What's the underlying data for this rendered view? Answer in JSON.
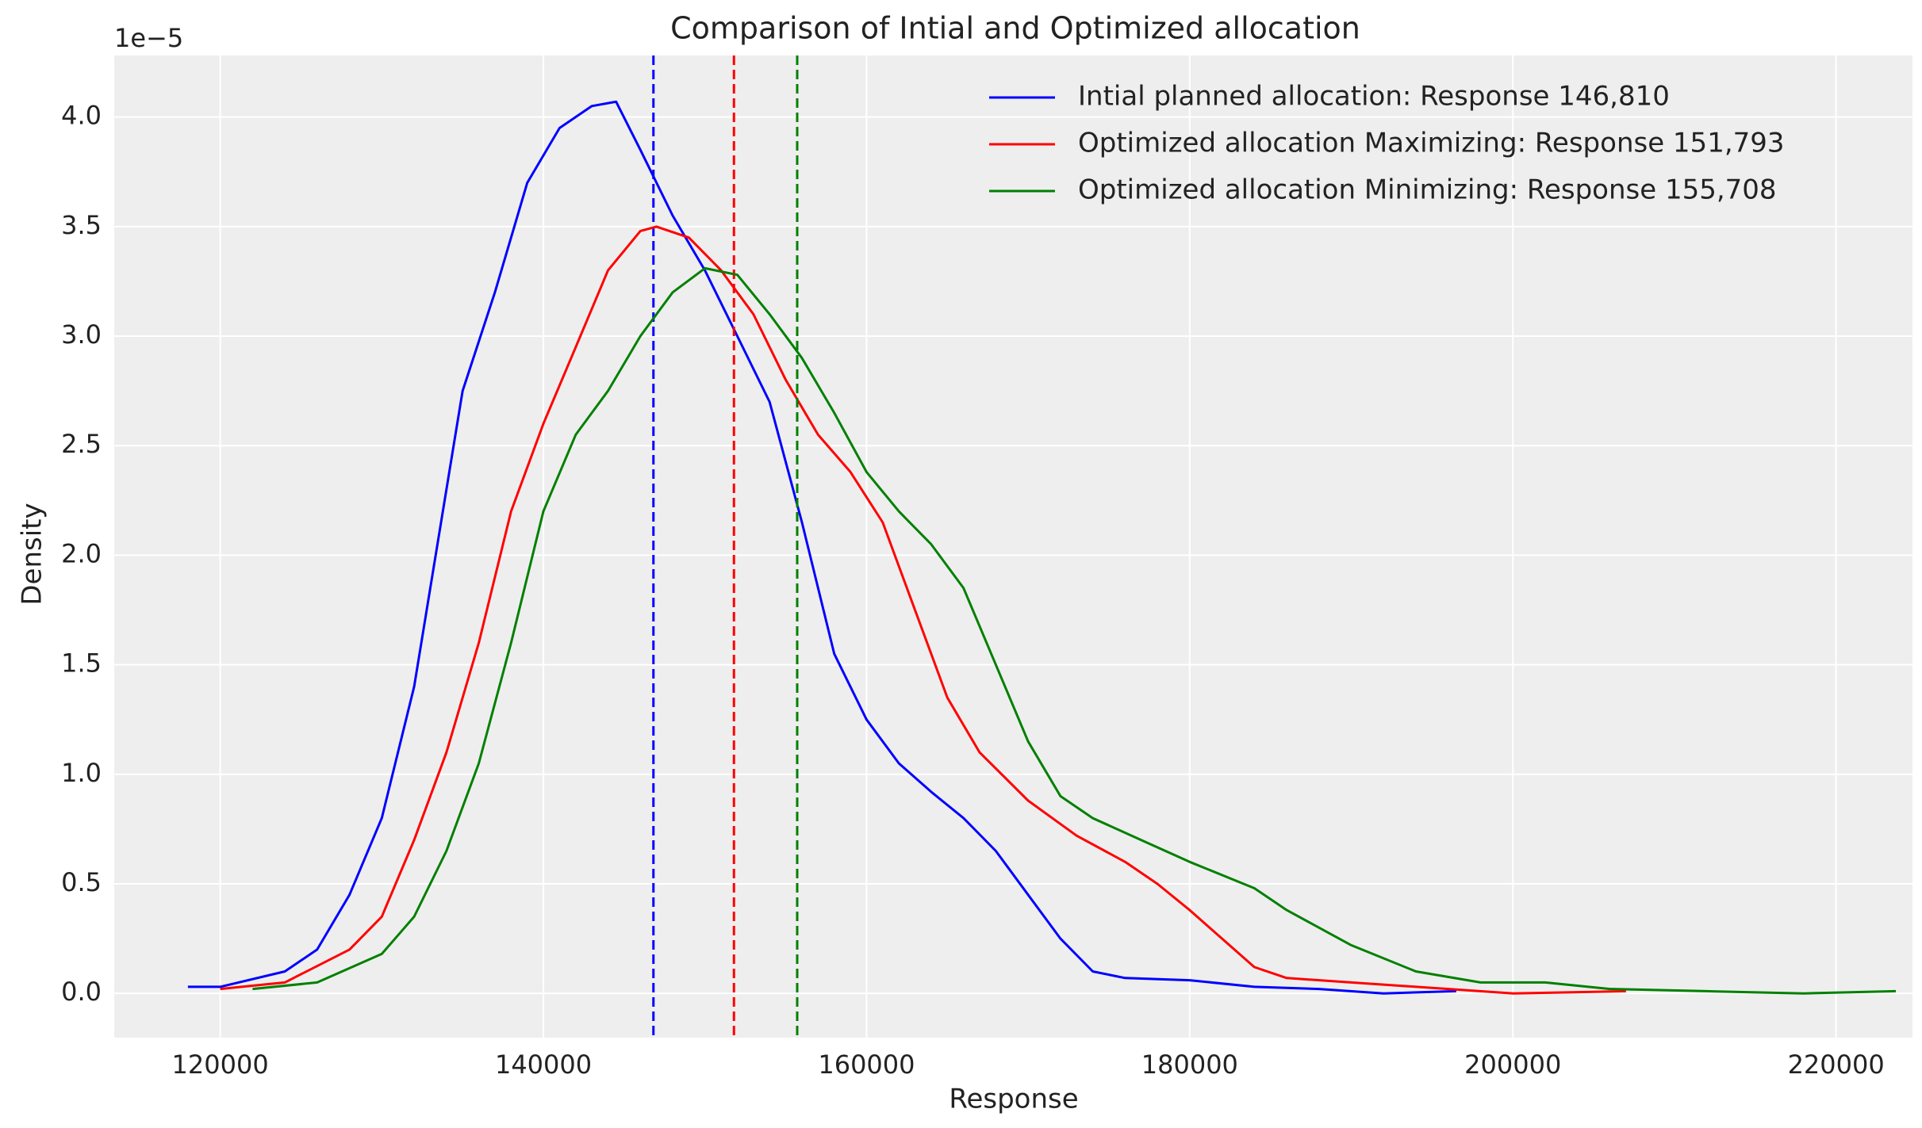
{
  "chart_data": {
    "type": "line",
    "title": "Comparison of Intial and Optimized allocation",
    "x_label": "Response",
    "y_label": "Density",
    "y_offset_label": "1e−5",
    "xlim": [
      113440,
      224730
    ],
    "ylim": [
      -0.202,
      4.281
    ],
    "xticks": [
      120000,
      140000,
      160000,
      180000,
      200000,
      220000
    ],
    "yticks": [
      {
        "value": 0,
        "label": "0.0"
      },
      {
        "value": 0.5,
        "label": "0.5"
      },
      {
        "value": 1,
        "label": "1.0"
      },
      {
        "value": 1.5,
        "label": "1.5"
      },
      {
        "value": 2,
        "label": "2.0"
      },
      {
        "value": 2.5,
        "label": "2.5"
      },
      {
        "value": 3,
        "label": "3.0"
      },
      {
        "value": 3.5,
        "label": "3.5"
      },
      {
        "value": 4,
        "label": "4.0"
      }
    ],
    "grid": true,
    "legend": "upper right",
    "series": [
      {
        "name": "Intial planned allocation: Response 146,810",
        "color": "#0000ff",
        "mean": 146810,
        "x": [
          118000,
          120000,
          124000,
          126000,
          128000,
          130000,
          132000,
          134000,
          135000,
          137000,
          139000,
          141000,
          143000,
          144500,
          146000,
          148000,
          150000,
          152000,
          154000,
          156000,
          158000,
          160000,
          162000,
          164000,
          166000,
          168000,
          170000,
          172000,
          174000,
          176000,
          180000,
          184000,
          188000,
          192000,
          196500
        ],
        "values": [
          0.03,
          0.03,
          0.1,
          0.2,
          0.45,
          0.8,
          1.4,
          2.3,
          2.75,
          3.2,
          3.7,
          3.95,
          4.05,
          4.07,
          3.85,
          3.55,
          3.3,
          3.0,
          2.7,
          2.15,
          1.55,
          1.25,
          1.05,
          0.92,
          0.8,
          0.65,
          0.45,
          0.25,
          0.1,
          0.07,
          0.06,
          0.03,
          0.02,
          0.0,
          0.01
        ]
      },
      {
        "name": "Optimized allocation Maximizing: Response 151,793",
        "color": "#ff0000",
        "mean": 151793,
        "x": [
          120000,
          124000,
          128000,
          130000,
          132000,
          134000,
          136000,
          138000,
          140000,
          142000,
          144000,
          146000,
          147000,
          149000,
          151000,
          153000,
          155000,
          157000,
          159000,
          161000,
          163000,
          165000,
          167000,
          170000,
          173000,
          176000,
          178000,
          180000,
          182000,
          184000,
          186000,
          190000,
          196000,
          200000,
          207000
        ],
        "values": [
          0.02,
          0.05,
          0.2,
          0.35,
          0.7,
          1.1,
          1.6,
          2.2,
          2.6,
          2.95,
          3.3,
          3.48,
          3.5,
          3.45,
          3.3,
          3.1,
          2.8,
          2.55,
          2.38,
          2.15,
          1.75,
          1.35,
          1.1,
          0.88,
          0.72,
          0.6,
          0.5,
          0.38,
          0.25,
          0.12,
          0.07,
          0.05,
          0.02,
          0.0,
          0.01
        ]
      },
      {
        "name": "Optimized allocation Minimizing: Response 155,708",
        "color": "#008000",
        "mean": 155708,
        "x": [
          122000,
          126000,
          130000,
          132000,
          134000,
          136000,
          138000,
          140000,
          142000,
          144000,
          146000,
          148000,
          150000,
          152000,
          154000,
          156000,
          158000,
          160000,
          162000,
          164000,
          166000,
          168000,
          170000,
          172000,
          174000,
          177000,
          180000,
          184000,
          186000,
          190000,
          194000,
          198000,
          202000,
          206000,
          212000,
          218000,
          223700
        ],
        "values": [
          0.02,
          0.05,
          0.18,
          0.35,
          0.65,
          1.05,
          1.6,
          2.2,
          2.55,
          2.75,
          3.0,
          3.2,
          3.31,
          3.28,
          3.1,
          2.9,
          2.65,
          2.38,
          2.2,
          2.05,
          1.85,
          1.5,
          1.15,
          0.9,
          0.8,
          0.7,
          0.6,
          0.48,
          0.38,
          0.22,
          0.1,
          0.05,
          0.05,
          0.02,
          0.01,
          0.0,
          0.01
        ]
      }
    ]
  }
}
